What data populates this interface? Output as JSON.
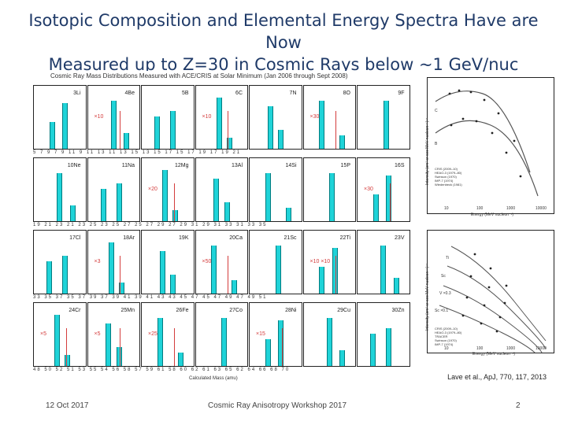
{
  "slide": {
    "title_line1": "Isotopic Composition and Elemental Energy Spectra Have are Now",
    "title_line2": "Measured up to Z=30 in Cosmic Rays below ~1 GeV/nuc",
    "grid_caption": "Cosmic Ray Mass Distributions Measured with ACE/CRIS at Solar Minimum (Jan 2006 through Sept 2008)",
    "grid_xlabel": "Calculated Mass (amu)",
    "reference": "Lave et al., ApJ, 770, 117, 2013",
    "footer_left": "12 Oct 2017",
    "footer_center": "Cosmic Ray Anisotropy Workshop 2017",
    "footer_right": "2"
  },
  "grid": {
    "rows": [
      {
        "elements": [
          "3Li",
          "4Be",
          "5B",
          "6C",
          "7N",
          "8O",
          "9F"
        ],
        "multipliers": [
          "",
          "×10",
          "",
          "×10",
          "",
          "×30",
          ""
        ],
        "ticks": "5 7 9 7 9 11  9 11 13  11 13 15  13 15 17  15 17 19  17 19 21"
      },
      {
        "elements": [
          "10Ne",
          "11Na",
          "12Mg",
          "13Al",
          "14Si",
          "15P",
          "16S"
        ],
        "multipliers": [
          "",
          "",
          "×20",
          "",
          "",
          "",
          "×30"
        ],
        "ticks": "19 21 23  21 23 25  23 25 27  25 27 29  27 29 31  29 31 33  31 33 35"
      },
      {
        "elements": [
          "17Cl",
          "18Ar",
          "19K",
          "20Ca",
          "21Sc",
          "22Ti",
          "23V"
        ],
        "multipliers": [
          "",
          "×3",
          "",
          "×50",
          "",
          "×10 ×10",
          ""
        ],
        "ticks": "33 35 37  35 37 39  37 39 41  39 41 43  43 45 47  45 47 49  47 49 51"
      },
      {
        "elements": [
          "24Cr",
          "25Mn",
          "26Fe",
          "27Co",
          "28Ni",
          "29Cu",
          "30Zn"
        ],
        "multipliers": [
          "×5",
          "×5",
          "×25",
          "",
          "×15",
          "",
          ""
        ],
        "ticks": "48 50 52  51 53 55  54 56 58  57 59 61  58 60 62  61 63 65  62 64 66 68 70"
      }
    ]
  },
  "spectra": {
    "top": {
      "ylabel": "Intensity (cm² sr sec MeV nucleon⁻¹)⁻¹",
      "xlabel": "Energy (MeV nucleon⁻¹)",
      "xticks": [
        "10",
        "100",
        "1000",
        "10000"
      ],
      "labels": [
        "C",
        "B"
      ],
      "legend": [
        "CRIS (2009–10)",
        "HEAO-3 (1979–80)",
        "Swinson (1970)",
        "IMP-7 (1974)",
        "Wiedenbeck (1981)"
      ]
    },
    "bottom": {
      "ylabel": "Intensity (cm² sr sec MeV nucleon⁻¹)⁻¹",
      "xlabel": "Energy (MeV nucleon⁻¹)",
      "xticks": [
        "10",
        "100",
        "1000",
        "10000"
      ],
      "labels": [
        "Ti",
        "Sc",
        "V ×0.3",
        "Sc ×0.1"
      ],
      "legend": [
        "CRIS (2009–10)",
        "HEAO-3 (1979–80)",
        "TRACER",
        "Swinson (1970)",
        "IMP-7 (1974)"
      ]
    }
  },
  "colors": {
    "title": "#1f3a68",
    "peak": "#1fd3d8",
    "red": "#d43d3d"
  }
}
